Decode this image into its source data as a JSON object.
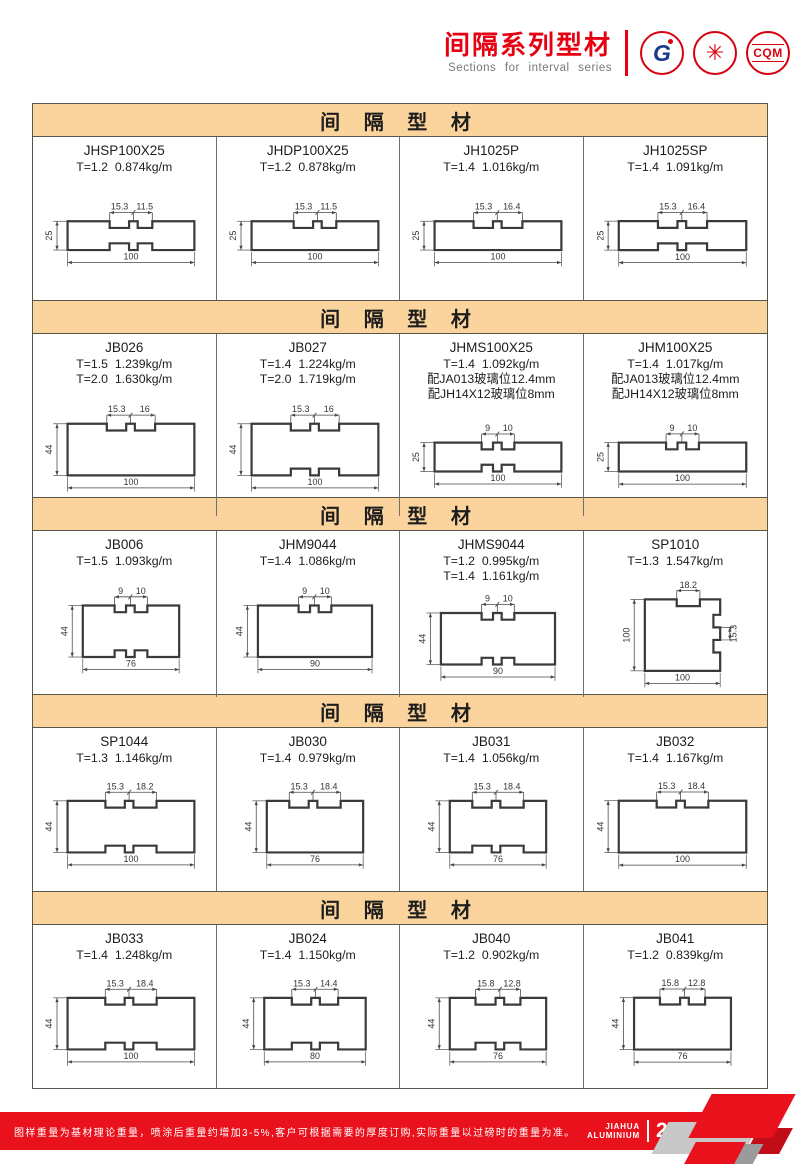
{
  "header": {
    "title": "间隔系列型材",
    "subtitle": "Sections for interval series",
    "logo_cqm_text": "CQM",
    "logo_gb_text": "G"
  },
  "section_header_label": "间 隔 型 材",
  "colors": {
    "accent_red": "#E60012",
    "section_header_bg": "#FAD49C",
    "footer_red": "#E8111C",
    "line_gray": "#56564A"
  },
  "sections": [
    {
      "profiles": [
        {
          "code": "JHSP100X25",
          "specs": [
            "T=1.2  0.874kg/m"
          ],
          "drawing": {
            "variant": "both",
            "dims_top": [
              "15.3",
              "11.5"
            ],
            "dim_left": "25",
            "dim_bottom": "100",
            "w": 100,
            "h": 25
          }
        },
        {
          "code": "JHDP100X25",
          "specs": [
            "T=1.2  0.878kg/m"
          ],
          "drawing": {
            "variant": "top",
            "dims_top": [
              "15.3",
              "11.5"
            ],
            "dim_left": "25",
            "dim_bottom": "100",
            "w": 100,
            "h": 25
          }
        },
        {
          "code": "JH1025P",
          "specs": [
            "T=1.4  1.016kg/m"
          ],
          "drawing": {
            "variant": "top",
            "dims_top": [
              "15.3",
              "16.4"
            ],
            "dim_left": "25",
            "dim_bottom": "100",
            "w": 100,
            "h": 25
          }
        },
        {
          "code": "JH1025SP",
          "specs": [
            "T=1.4  1.091kg/m"
          ],
          "drawing": {
            "variant": "both",
            "dims_top": [
              "15.3",
              "16.4"
            ],
            "dim_left": "25",
            "dim_bottom": "100",
            "w": 100,
            "h": 25
          }
        }
      ]
    },
    {
      "profiles": [
        {
          "code": "JB026",
          "specs": [
            "T=1.5  1.239kg/m",
            "T=2.0  1.630kg/m"
          ],
          "drawing": {
            "variant": "top",
            "dims_top": [
              "15.3",
              "16"
            ],
            "dim_left": "44",
            "dim_bottom": "100",
            "w": 100,
            "h": 44
          }
        },
        {
          "code": "JB027",
          "specs": [
            "T=1.4  1.224kg/m",
            "T=2.0  1.719kg/m"
          ],
          "drawing": {
            "variant": "both",
            "dims_top": [
              "15.3",
              "16"
            ],
            "dim_left": "44",
            "dim_bottom": "100",
            "w": 100,
            "h": 44
          }
        },
        {
          "code": "JHMS100X25",
          "specs": [
            "T=1.4  1.092kg/m",
            "配JA013玻璃位12.4mm",
            "配JH14X12玻璃位8mm"
          ],
          "drawing": {
            "variant": "both",
            "dims_top": [
              "9",
              "10"
            ],
            "dim_left": "25",
            "dim_bottom": "100",
            "w": 100,
            "h": 25
          }
        },
        {
          "code": "JHM100X25",
          "specs": [
            "T=1.4  1.017kg/m",
            "配JA013玻璃位12.4mm",
            "配JH14X12玻璃位8mm"
          ],
          "drawing": {
            "variant": "top",
            "dims_top": [
              "9",
              "10"
            ],
            "dim_left": "25",
            "dim_bottom": "100",
            "w": 100,
            "h": 25
          }
        }
      ]
    },
    {
      "profiles": [
        {
          "code": "JB006",
          "specs": [
            "T=1.5  1.093kg/m"
          ],
          "drawing": {
            "variant": "both",
            "dims_top": [
              "9",
              "10"
            ],
            "dim_left": "44",
            "dim_bottom": "76",
            "w": 76,
            "h": 44
          }
        },
        {
          "code": "JHM9044",
          "specs": [
            "T=1.4  1.086kg/m"
          ],
          "drawing": {
            "variant": "top",
            "dims_top": [
              "9",
              "10"
            ],
            "dim_left": "44",
            "dim_bottom": "90",
            "w": 90,
            "h": 44
          }
        },
        {
          "code": "JHMS9044",
          "specs": [
            "T=1.2  0.995kg/m",
            "T=1.4  1.161kg/m"
          ],
          "drawing": {
            "variant": "both",
            "dims_top": [
              "9",
              "10"
            ],
            "dim_left": "44",
            "dim_bottom": "90",
            "w": 90,
            "h": 44
          }
        },
        {
          "code": "SP1010",
          "specs": [
            "T=1.3  1.547kg/m"
          ],
          "drawing": {
            "variant": "square",
            "dims_top": [
              "18.2"
            ],
            "dim_left": "100",
            "dim_bottom": "100",
            "dim_right": "15.3",
            "w": 100,
            "h": 100
          }
        }
      ]
    },
    {
      "profiles": [
        {
          "code": "SP1044",
          "specs": [
            "T=1.3  1.146kg/m"
          ],
          "drawing": {
            "variant": "both",
            "dims_top": [
              "15.3",
              "18.2"
            ],
            "dim_left": "44",
            "dim_bottom": "100",
            "w": 100,
            "h": 44
          }
        },
        {
          "code": "JB030",
          "specs": [
            "T=1.4  0.979kg/m"
          ],
          "drawing": {
            "variant": "top",
            "dims_top": [
              "15.3",
              "18.4"
            ],
            "dim_left": "44",
            "dim_bottom": "76",
            "w": 76,
            "h": 44
          }
        },
        {
          "code": "JB031",
          "specs": [
            "T=1.4  1.056kg/m"
          ],
          "drawing": {
            "variant": "both",
            "dims_top": [
              "15.3",
              "18.4"
            ],
            "dim_left": "44",
            "dim_bottom": "76",
            "w": 76,
            "h": 44
          }
        },
        {
          "code": "JB032",
          "specs": [
            "T=1.4  1.167kg/m"
          ],
          "drawing": {
            "variant": "top",
            "dims_top": [
              "15.3",
              "18.4"
            ],
            "dim_left": "44",
            "dim_bottom": "100",
            "w": 100,
            "h": 44
          }
        }
      ]
    },
    {
      "profiles": [
        {
          "code": "JB033",
          "specs": [
            "T=1.4  1.248kg/m"
          ],
          "drawing": {
            "variant": "both",
            "dims_top": [
              "15.3",
              "18.4"
            ],
            "dim_left": "44",
            "dim_bottom": "100",
            "w": 100,
            "h": 44
          }
        },
        {
          "code": "JB024",
          "specs": [
            "T=1.4  1.150kg/m"
          ],
          "drawing": {
            "variant": "both",
            "dims_top": [
              "15.3",
              "14.4"
            ],
            "dim_left": "44",
            "dim_bottom": "80",
            "w": 80,
            "h": 44
          }
        },
        {
          "code": "JB040",
          "specs": [
            "T=1.2  0.902kg/m"
          ],
          "drawing": {
            "variant": "both",
            "dims_top": [
              "15.8",
              "12.8"
            ],
            "dim_left": "44",
            "dim_bottom": "76",
            "w": 76,
            "h": 44
          }
        },
        {
          "code": "JB041",
          "specs": [
            "T=1.2  0.839kg/m"
          ],
          "drawing": {
            "variant": "top",
            "dims_top": [
              "15.8",
              "12.8"
            ],
            "dim_left": "44",
            "dim_bottom": "76",
            "w": 76,
            "h": 44
          }
        }
      ]
    }
  ],
  "footer": {
    "note": "图样重量为基材理论重量，喷涂后重量约增加3-5%,客户可根据需要的厚度订购,实际重量以过磅时的重量为准。",
    "brand_line1": "JIAHUA",
    "brand_line2": "ALUMINIUM",
    "page_number": "223"
  }
}
